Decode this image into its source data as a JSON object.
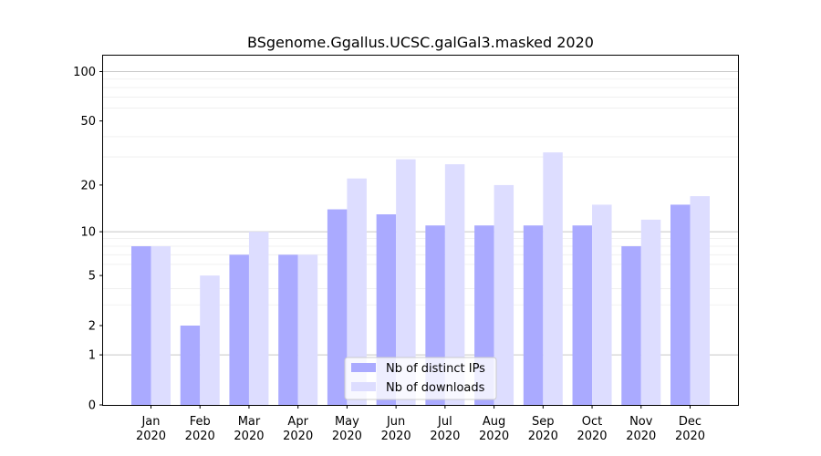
{
  "chart_data": {
    "type": "bar",
    "title": "BSgenome.Ggallus.UCSC.galGal3.masked 2020",
    "xlabel": "",
    "ylabel": "",
    "yscale": "log1p",
    "ylim": [
      0,
      125
    ],
    "grid": true,
    "legend_position": "bottom-center",
    "categories": [
      [
        "Jan",
        "2020"
      ],
      [
        "Feb",
        "2020"
      ],
      [
        "Mar",
        "2020"
      ],
      [
        "Apr",
        "2020"
      ],
      [
        "May",
        "2020"
      ],
      [
        "Jun",
        "2020"
      ],
      [
        "Jul",
        "2020"
      ],
      [
        "Aug",
        "2020"
      ],
      [
        "Sep",
        "2020"
      ],
      [
        "Oct",
        "2020"
      ],
      [
        "Nov",
        "2020"
      ],
      [
        "Dec",
        "2020"
      ]
    ],
    "yticks": [
      {
        "value": 0,
        "label": "0"
      },
      {
        "value": 1,
        "label": "1"
      },
      {
        "value": 2,
        "label": "2"
      },
      {
        "value": 5,
        "label": "5"
      },
      {
        "value": 10,
        "label": "10"
      },
      {
        "value": 20,
        "label": "20"
      },
      {
        "value": 50,
        "label": "50"
      },
      {
        "value": 100,
        "label": "100"
      }
    ],
    "series": [
      {
        "name": "Nb of distinct IPs",
        "color": "#aaaaff",
        "values": [
          8,
          2,
          7,
          7,
          14,
          13,
          11,
          11,
          11,
          11,
          8,
          15
        ]
      },
      {
        "name": "Nb of downloads",
        "color": "#ddddff",
        "values": [
          8,
          5,
          10,
          7,
          22,
          29,
          27,
          20,
          32,
          15,
          12,
          17
        ]
      }
    ]
  }
}
